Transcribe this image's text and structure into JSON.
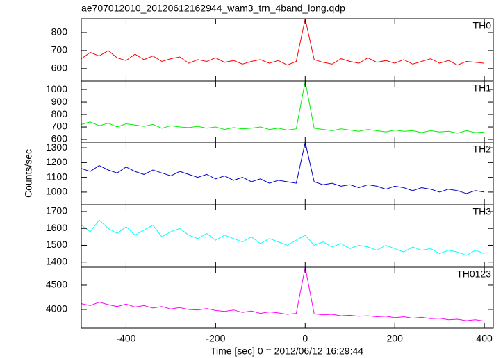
{
  "chart_data": {
    "type": "line",
    "title": "ae707012010_20120612162944_wam3_trn_4band_long.qdp",
    "ylabel": "Counts/sec",
    "xlabel": "Time [sec] 0 = 2012/06/12 16:29:44",
    "x": [
      -500,
      -480,
      -460,
      -440,
      -420,
      -400,
      -380,
      -360,
      -340,
      -320,
      -300,
      -280,
      -260,
      -240,
      -220,
      -200,
      -180,
      -160,
      -140,
      -120,
      -100,
      -80,
      -60,
      -40,
      -20,
      0,
      20,
      40,
      60,
      80,
      100,
      120,
      140,
      160,
      180,
      200,
      220,
      240,
      260,
      280,
      300,
      320,
      340,
      360,
      380,
      400
    ],
    "xlim": [
      -500,
      420
    ],
    "xticks": [
      -400,
      -200,
      0,
      200,
      400
    ],
    "panels": [
      {
        "name": "TH0",
        "color": "#ff0000",
        "ylim": [
          530,
          877
        ],
        "yticks": [
          600,
          700,
          800
        ],
        "values": [
          655,
          690,
          670,
          700,
          660,
          645,
          680,
          650,
          670,
          640,
          655,
          665,
          630,
          650,
          640,
          660,
          635,
          645,
          625,
          640,
          650,
          630,
          645,
          620,
          640,
          877,
          650,
          635,
          625,
          655,
          640,
          630,
          660,
          635,
          645,
          630,
          650,
          625,
          640,
          655,
          630,
          645,
          620,
          640,
          635,
          630
        ]
      },
      {
        "name": "TH1",
        "color": "#00ee00",
        "ylim": [
          578,
          1067
        ],
        "yticks": [
          600,
          700,
          800,
          900,
          1000
        ],
        "values": [
          720,
          740,
          710,
          730,
          700,
          725,
          715,
          705,
          720,
          690,
          710,
          700,
          695,
          705,
          690,
          700,
          680,
          695,
          685,
          690,
          700,
          680,
          690,
          675,
          685,
          1067,
          690,
          680,
          670,
          685,
          675,
          665,
          680,
          670,
          660,
          675,
          665,
          670,
          655,
          670,
          660,
          665,
          650,
          670,
          655,
          660
        ]
      },
      {
        "name": "TH2",
        "color": "#0000cc",
        "ylim": [
          915,
          1338
        ],
        "yticks": [
          1000,
          1100,
          1200,
          1300
        ],
        "values": [
          1160,
          1140,
          1180,
          1150,
          1130,
          1170,
          1140,
          1120,
          1150,
          1130,
          1110,
          1140,
          1120,
          1100,
          1120,
          1090,
          1110,
          1080,
          1100,
          1070,
          1090,
          1060,
          1080,
          1070,
          1060,
          1338,
          1070,
          1050,
          1060,
          1040,
          1050,
          1030,
          1050,
          1040,
          1020,
          1040,
          1030,
          1010,
          1030,
          1020,
          1000,
          1020,
          1010,
          990,
          1010,
          1000
        ]
      },
      {
        "name": "TH3",
        "color": "#00ffff",
        "ylim": [
          1370,
          1741
        ],
        "yticks": [
          1400,
          1500,
          1600,
          1700
        ],
        "values": [
          1620,
          1580,
          1650,
          1600,
          1570,
          1610,
          1560,
          1590,
          1620,
          1550,
          1580,
          1600,
          1560,
          1540,
          1570,
          1530,
          1560,
          1540,
          1520,
          1550,
          1510,
          1540,
          1520,
          1500,
          1530,
          1560,
          1500,
          1520,
          1490,
          1510,
          1480,
          1500,
          1490,
          1470,
          1500,
          1480,
          1460,
          1490,
          1470,
          1480,
          1450,
          1470,
          1460,
          1440,
          1470,
          1450
        ]
      },
      {
        "name": "TH0123",
        "color": "#ff00ff",
        "ylim": [
          3614,
          4871
        ],
        "yticks": [
          4000,
          4500
        ],
        "values": [
          4120,
          4080,
          4150,
          4100,
          4060,
          4110,
          4050,
          4080,
          4030,
          4060,
          4010,
          4040,
          4000,
          3990,
          4020,
          3980,
          3960,
          3990,
          3940,
          3970,
          3920,
          3950,
          3930,
          3900,
          3920,
          4871,
          3910,
          3890,
          3900,
          3870,
          3880,
          3860,
          3870,
          3850,
          3860,
          3830,
          3850,
          3820,
          3840,
          3810,
          3820,
          3790,
          3800,
          3770,
          3790,
          3760
        ]
      }
    ]
  }
}
